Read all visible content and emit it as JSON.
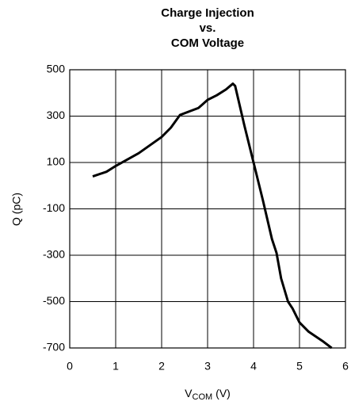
{
  "chart_data": {
    "type": "line",
    "title": [
      "Charge Injection",
      "vs.",
      "COM Voltage"
    ],
    "x_label": {
      "main": "V",
      "sub": "COM",
      "unit": "(V)"
    },
    "y_label": "Q (pC)",
    "x": [
      0.5,
      0.8,
      1.0,
      1.5,
      1.75,
      2.0,
      2.2,
      2.4,
      2.6,
      2.8,
      3.0,
      3.2,
      3.4,
      3.55,
      3.6,
      3.8,
      4.0,
      4.2,
      4.4,
      4.5,
      4.6,
      4.75,
      4.85,
      5.0,
      5.2,
      5.5,
      5.7
    ],
    "series": [
      {
        "color": "#000000",
        "values": [
          40,
          60,
          85,
          140,
          175,
          210,
          250,
          305,
          320,
          335,
          370,
          390,
          415,
          440,
          430,
          260,
          100,
          -60,
          -230,
          -290,
          -400,
          -500,
          -530,
          -590,
          -630,
          -670,
          -700
        ]
      }
    ],
    "xlim": [
      0,
      6
    ],
    "xticks": [
      0,
      1,
      2,
      3,
      4,
      5,
      6
    ],
    "ylim": [
      -700,
      500
    ],
    "yticks": [
      -700,
      -500,
      -300,
      -100,
      100,
      300,
      500
    ],
    "grid": true
  }
}
